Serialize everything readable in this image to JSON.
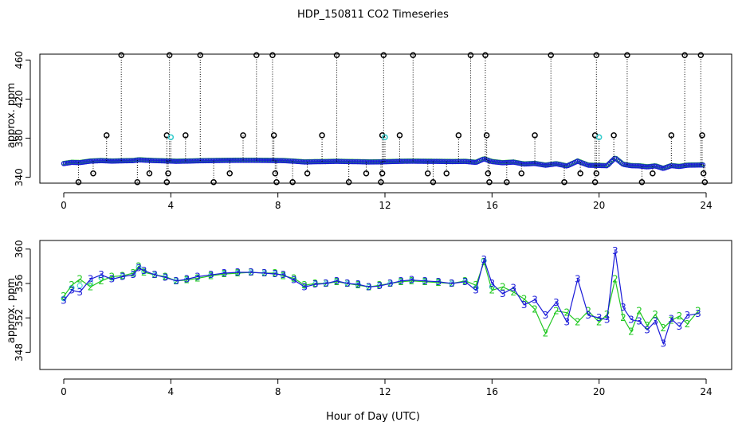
{
  "title": "HDP_150811  CO2 Timeseries",
  "xlabel": "Hour of Day (UTC)",
  "chart_data": [
    {
      "type": "scatter",
      "panel": "top",
      "ylabel": "approx. ppm",
      "xlim": [
        0,
        24
      ],
      "ylim": [
        334,
        466
      ],
      "xticks": [
        0,
        4,
        8,
        12,
        16,
        20,
        24
      ],
      "yticks": [
        340,
        380,
        420,
        460
      ],
      "outliers_high": [
        2.15,
        3.95,
        5.1,
        7.2,
        7.8,
        10.2,
        11.95,
        13.05,
        15.2,
        15.75,
        18.2,
        19.9,
        21.05,
        23.2,
        23.8
      ],
      "outliers_mid": [
        1.6,
        3.85,
        4.55,
        6.7,
        7.85,
        9.65,
        11.9,
        12.55,
        14.75,
        15.8,
        17.6,
        19.85,
        20.55,
        22.7,
        23.85
      ],
      "outliers_mid_value": 383,
      "outliers_cyan": [
        4.0,
        12.0,
        20.0
      ],
      "outliers_cyan_value": 381,
      "outliers_low": [
        1.1,
        3.2,
        3.9,
        6.2,
        7.9,
        9.1,
        11.3,
        11.9,
        13.6,
        14.3,
        15.85,
        17.1,
        19.3,
        19.9,
        22.0,
        23.9
      ],
      "outliers_low_value": 344,
      "outliers_bottom": [
        0.55,
        2.75,
        3.85,
        5.6,
        7.95,
        8.55,
        10.65,
        11.85,
        13.8,
        15.9,
        16.55,
        18.7,
        19.85,
        21.6,
        23.95
      ],
      "outliers_bottom_value": 335,
      "outlier_high_value": 465
    },
    {
      "type": "line",
      "panel": "bottom",
      "ylabel": "approx. ppm",
      "xlim": [
        0,
        24
      ],
      "ylim": [
        346,
        361
      ],
      "xticks": [
        0,
        4,
        8,
        12,
        16,
        20,
        24
      ],
      "yticks": [
        348,
        352,
        356,
        360
      ],
      "series_labels": [
        "2",
        "3"
      ],
      "x": [
        0.0,
        0.3,
        0.6,
        1.0,
        1.4,
        1.8,
        2.2,
        2.6,
        2.8,
        3.0,
        3.4,
        3.8,
        4.2,
        4.6,
        5.0,
        5.5,
        6.0,
        6.5,
        7.0,
        7.5,
        7.9,
        8.2,
        8.6,
        9.0,
        9.4,
        9.8,
        10.2,
        10.6,
        11.0,
        11.4,
        11.8,
        12.2,
        12.6,
        13.0,
        13.5,
        14.0,
        14.5,
        15.0,
        15.4,
        15.7,
        16.0,
        16.4,
        16.8,
        17.2,
        17.6,
        18.0,
        18.4,
        18.8,
        19.2,
        19.6,
        20.0,
        20.3,
        20.6,
        20.9,
        21.2,
        21.5,
        21.8,
        22.1,
        22.4,
        22.7,
        23.0,
        23.3,
        23.7
      ],
      "series": [
        {
          "name": "2",
          "color": "#22c822",
          "values": [
            354.5,
            355.8,
            356.5,
            355.6,
            356.3,
            356.8,
            356.9,
            357.2,
            358.0,
            357.3,
            357.0,
            356.8,
            356.3,
            356.4,
            356.6,
            356.9,
            357.1,
            357.2,
            357.3,
            357.2,
            357.2,
            356.9,
            356.6,
            355.8,
            356.0,
            356.0,
            356.2,
            356.0,
            355.8,
            355.6,
            355.8,
            356.0,
            356.2,
            356.3,
            356.2,
            356.1,
            356.0,
            356.3,
            355.8,
            358.5,
            355.2,
            355.6,
            355.0,
            354.2,
            353.0,
            350.2,
            352.8,
            352.6,
            351.5,
            352.8,
            351.5,
            352.4,
            356.5,
            352.0,
            350.4,
            352.8,
            351.1,
            352.4,
            350.8,
            351.7,
            352.2,
            351.3,
            352.8
          ]
        },
        {
          "name": "3",
          "color": "#1a1ad8",
          "values": [
            354.0,
            355.2,
            355.0,
            356.5,
            357.0,
            356.5,
            356.8,
            357.0,
            357.8,
            357.5,
            357.0,
            356.7,
            356.3,
            356.5,
            356.8,
            357.0,
            357.2,
            357.3,
            357.3,
            357.2,
            357.1,
            357.0,
            356.4,
            355.6,
            355.9,
            356.0,
            356.3,
            356.0,
            355.9,
            355.6,
            355.7,
            356.0,
            356.3,
            356.4,
            356.3,
            356.2,
            356.0,
            356.2,
            355.2,
            358.8,
            356.0,
            354.8,
            355.5,
            353.5,
            354.1,
            352.3,
            353.8,
            351.5,
            356.5,
            352.3,
            352.0,
            351.8,
            359.8,
            353.2,
            351.8,
            351.6,
            350.6,
            351.6,
            349.0,
            351.9,
            351.0,
            352.3,
            352.5
          ]
        }
      ]
    }
  ]
}
